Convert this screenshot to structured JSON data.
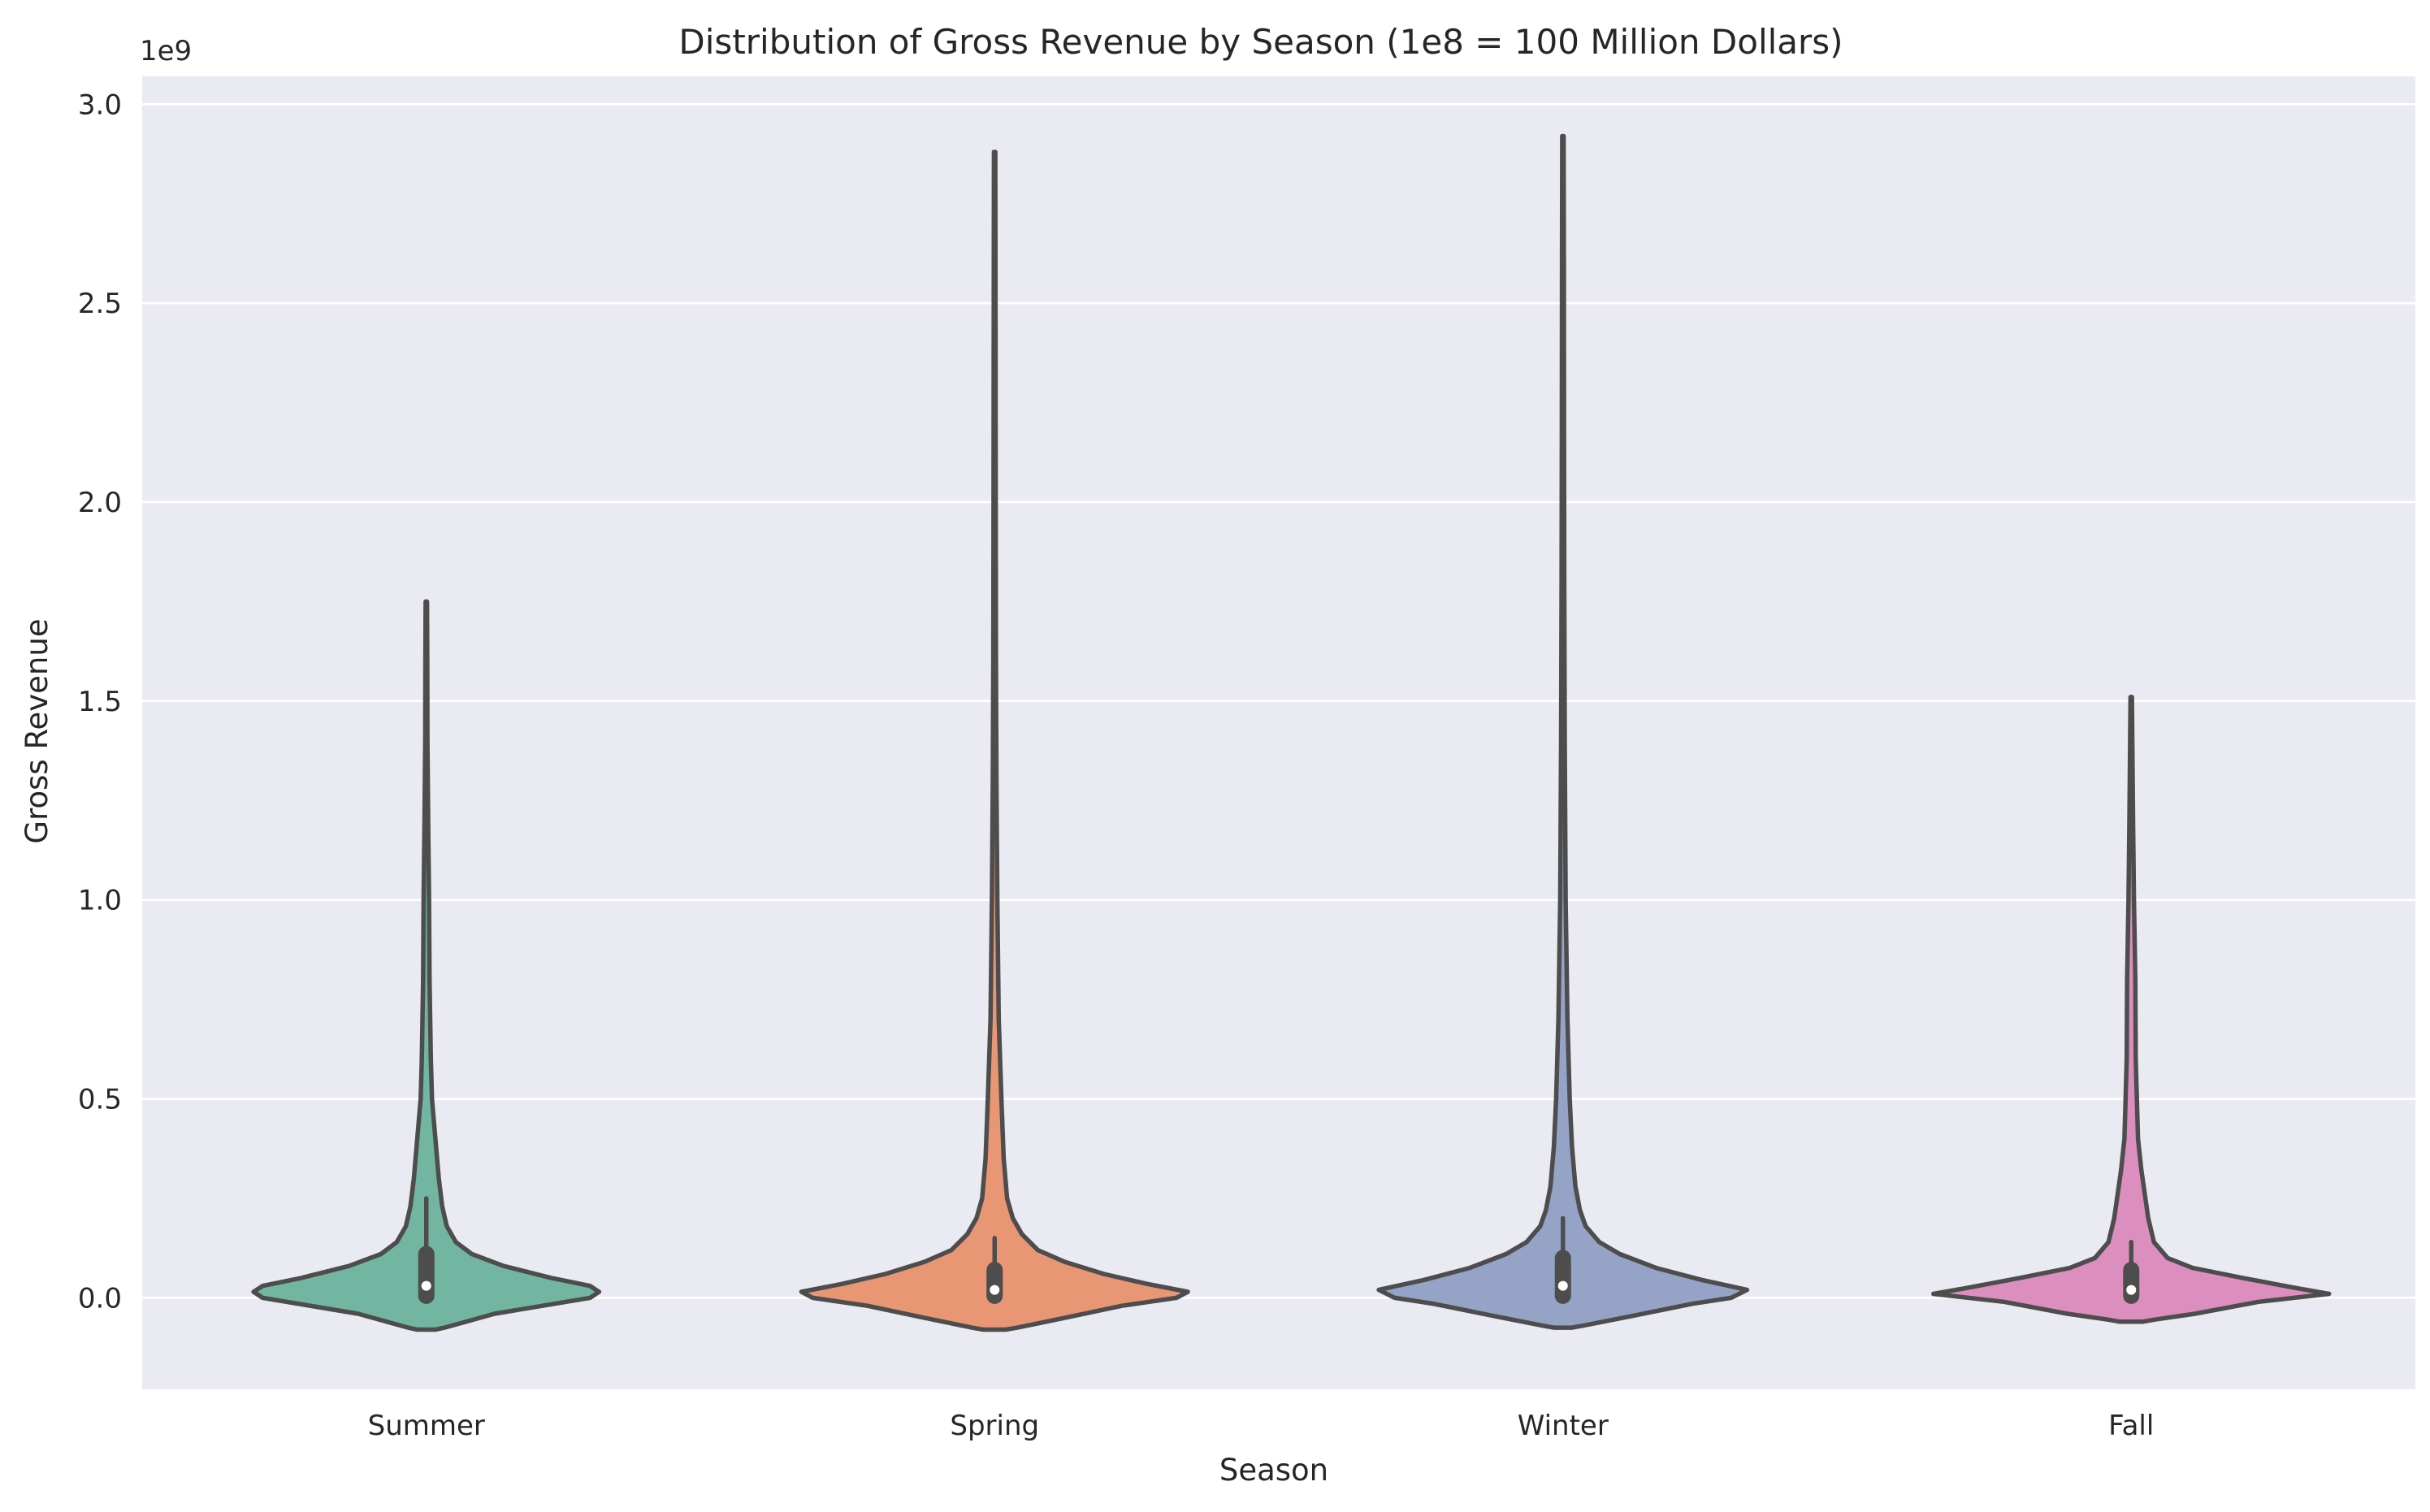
{
  "chart_data": {
    "type": "violin",
    "title": "Distribution of Gross Revenue by Season (1e8 = 100 Million Dollars)",
    "xlabel": "Season",
    "ylabel": "Gross Revenue",
    "y_offset_label": "1e9",
    "categories": [
      "Summer",
      "Spring",
      "Winter",
      "Fall"
    ],
    "ylim": [
      -0.23,
      3.07
    ],
    "yticks": [
      0.0,
      0.5,
      1.0,
      1.5,
      2.0,
      2.5,
      3.0
    ],
    "ytick_labels": [
      "0.0",
      "0.5",
      "1.0",
      "1.5",
      "2.0",
      "2.5",
      "3.0"
    ],
    "grid": true,
    "background": "#eaeaf2",
    "series": [
      {
        "category": "Summer",
        "color": "#72b6a1",
        "min": 0.0,
        "max": 1.75,
        "kde_min": -0.08,
        "q1": 0.005,
        "median": 0.03,
        "q3": 0.11,
        "whisker_high": 0.25,
        "density": [
          [
            -0.08,
            0.04
          ],
          [
            -0.075,
            0.08
          ],
          [
            -0.04,
            0.3
          ],
          [
            0.0,
            0.72
          ],
          [
            0.015,
            0.76
          ],
          [
            0.03,
            0.72
          ],
          [
            0.05,
            0.55
          ],
          [
            0.08,
            0.34
          ],
          [
            0.11,
            0.2
          ],
          [
            0.14,
            0.13
          ],
          [
            0.18,
            0.09
          ],
          [
            0.23,
            0.07
          ],
          [
            0.3,
            0.055
          ],
          [
            0.4,
            0.04
          ],
          [
            0.5,
            0.025
          ],
          [
            0.6,
            0.02
          ],
          [
            0.8,
            0.014
          ],
          [
            1.0,
            0.012
          ],
          [
            1.2,
            0.008
          ],
          [
            1.4,
            0.005
          ],
          [
            1.6,
            0.004
          ],
          [
            1.75,
            0.003
          ]
        ]
      },
      {
        "category": "Spring",
        "color": "#e99675",
        "min": 0.0,
        "max": 2.88,
        "kde_min": -0.08,
        "q1": 0.005,
        "median": 0.02,
        "q3": 0.07,
        "whisker_high": 0.15,
        "density": [
          [
            -0.08,
            0.05
          ],
          [
            -0.075,
            0.1
          ],
          [
            -0.05,
            0.31
          ],
          [
            -0.02,
            0.56
          ],
          [
            0.0,
            0.8
          ],
          [
            0.015,
            0.85
          ],
          [
            0.035,
            0.67
          ],
          [
            0.06,
            0.48
          ],
          [
            0.09,
            0.31
          ],
          [
            0.12,
            0.19
          ],
          [
            0.16,
            0.12
          ],
          [
            0.2,
            0.08
          ],
          [
            0.25,
            0.055
          ],
          [
            0.35,
            0.04
          ],
          [
            0.5,
            0.03
          ],
          [
            0.7,
            0.018
          ],
          [
            1.0,
            0.012
          ],
          [
            1.3,
            0.008
          ],
          [
            1.6,
            0.006
          ],
          [
            2.0,
            0.005
          ],
          [
            2.4,
            0.004
          ],
          [
            2.88,
            0.003
          ]
        ]
      },
      {
        "category": "Winter",
        "color": "#95a3c6",
        "min": 0.0,
        "max": 2.92,
        "kde_min": -0.075,
        "q1": 0.005,
        "median": 0.03,
        "q3": 0.1,
        "whisker_high": 0.2,
        "density": [
          [
            -0.075,
            0.04
          ],
          [
            -0.07,
            0.09
          ],
          [
            -0.045,
            0.31
          ],
          [
            -0.015,
            0.57
          ],
          [
            0.0,
            0.74
          ],
          [
            0.02,
            0.81
          ],
          [
            0.045,
            0.61
          ],
          [
            0.075,
            0.41
          ],
          [
            0.11,
            0.25
          ],
          [
            0.14,
            0.16
          ],
          [
            0.18,
            0.1
          ],
          [
            0.22,
            0.075
          ],
          [
            0.28,
            0.055
          ],
          [
            0.38,
            0.04
          ],
          [
            0.5,
            0.03
          ],
          [
            0.7,
            0.02
          ],
          [
            1.0,
            0.012
          ],
          [
            1.4,
            0.008
          ],
          [
            1.8,
            0.006
          ],
          [
            2.2,
            0.005
          ],
          [
            2.6,
            0.004
          ],
          [
            2.92,
            0.003
          ]
        ]
      },
      {
        "category": "Fall",
        "color": "#dc8fbf",
        "min": 0.0,
        "max": 1.51,
        "kde_min": -0.06,
        "q1": 0.005,
        "median": 0.02,
        "q3": 0.07,
        "whisker_high": 0.14,
        "density": [
          [
            -0.06,
            0.05
          ],
          [
            -0.055,
            0.1
          ],
          [
            -0.04,
            0.28
          ],
          [
            -0.01,
            0.56
          ],
          [
            0.01,
            0.87
          ],
          [
            0.025,
            0.72
          ],
          [
            0.05,
            0.49
          ],
          [
            0.075,
            0.27
          ],
          [
            0.1,
            0.16
          ],
          [
            0.14,
            0.1
          ],
          [
            0.2,
            0.075
          ],
          [
            0.26,
            0.06
          ],
          [
            0.32,
            0.045
          ],
          [
            0.4,
            0.03
          ],
          [
            0.6,
            0.02
          ],
          [
            0.8,
            0.018
          ],
          [
            1.0,
            0.012
          ],
          [
            1.2,
            0.008
          ],
          [
            1.4,
            0.005
          ],
          [
            1.51,
            0.003
          ]
        ]
      }
    ]
  }
}
